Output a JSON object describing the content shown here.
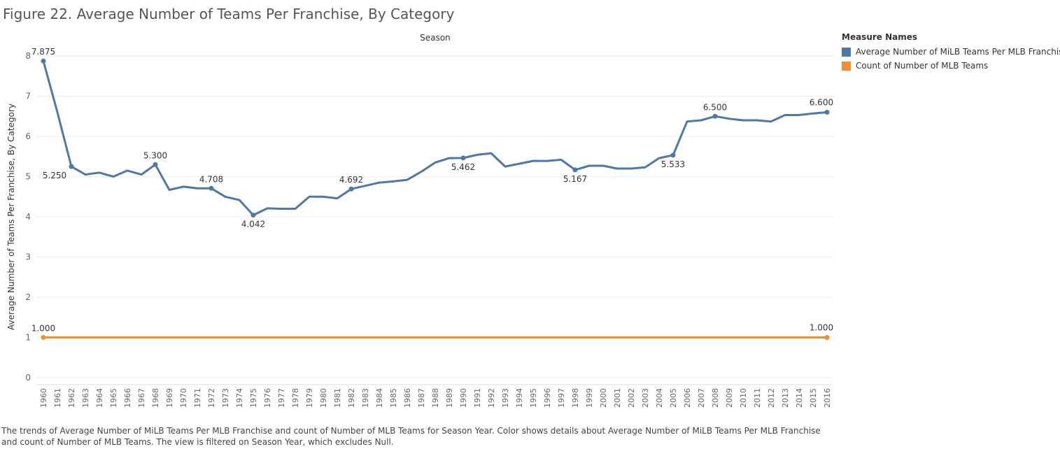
{
  "title": "Figure 22. Average Number of Teams Per Franchise, By Category",
  "caption": "The trends of Average Number of MiLB Teams Per MLB Franchise and count of Number of MLB Teams for Season Year.  Color shows details about Average Number of MiLB Teams Per MLB Franchise and count of Number of MLB Teams. The view is filtered on Season Year, which excludes Null.",
  "legend": {
    "title": "Measure Names",
    "items": [
      {
        "label": "Average Number of MiLB Teams Per MLB Franchise",
        "color": "#4e79a7"
      },
      {
        "label": "Count of Number of MLB Teams",
        "color": "#f28e2b"
      }
    ]
  },
  "chart_data": {
    "type": "line",
    "title": "Figure 22. Average Number of Teams Per Franchise, By Category",
    "xlabel": "Season",
    "ylabel": "Average Number of Teams Per Franchise, By Category",
    "ylim": [
      0,
      8
    ],
    "yticks": [
      "0",
      "1",
      "2",
      "3",
      "4",
      "5",
      "6",
      "7",
      "8"
    ],
    "grid": true,
    "legend_position": "right",
    "x": [
      "1960",
      "1961",
      "1962",
      "1963",
      "1964",
      "1965",
      "1966",
      "1967",
      "1968",
      "1969",
      "1970",
      "1971",
      "1972",
      "1973",
      "1974",
      "1975",
      "1976",
      "1977",
      "1978",
      "1979",
      "1980",
      "1981",
      "1982",
      "1983",
      "1984",
      "1985",
      "1986",
      "1987",
      "1988",
      "1989",
      "1990",
      "1991",
      "1992",
      "1993",
      "1994",
      "1995",
      "1996",
      "1997",
      "1998",
      "1999",
      "2000",
      "2001",
      "2002",
      "2003",
      "2004",
      "2005",
      "2006",
      "2007",
      "2008",
      "2009",
      "2010",
      "2011",
      "2012",
      "2013",
      "2014",
      "2015",
      "2016"
    ],
    "series": [
      {
        "name": "Average Number of MiLB Teams Per MLB Franchise",
        "color": "#4e79a7",
        "values": [
          7.875,
          6.6,
          5.25,
          5.05,
          5.1,
          5.0,
          5.15,
          5.05,
          5.3,
          4.67,
          4.75,
          4.71,
          4.708,
          4.5,
          4.42,
          4.042,
          4.21,
          4.2,
          4.2,
          4.5,
          4.5,
          4.46,
          4.692,
          4.77,
          4.85,
          4.88,
          4.92,
          5.12,
          5.35,
          5.46,
          5.462,
          5.54,
          5.58,
          5.25,
          5.32,
          5.39,
          5.39,
          5.42,
          5.167,
          5.27,
          5.27,
          5.2,
          5.2,
          5.23,
          5.46,
          5.533,
          6.37,
          6.4,
          6.5,
          6.44,
          6.4,
          6.4,
          6.37,
          6.53,
          6.53,
          6.57,
          6.6
        ],
        "labels": [
          {
            "year": "1960",
            "text": "7.875",
            "pos": "above"
          },
          {
            "year": "1962",
            "text": "5.250",
            "pos": "below-left"
          },
          {
            "year": "1968",
            "text": "5.300",
            "pos": "above"
          },
          {
            "year": "1972",
            "text": "4.708",
            "pos": "above"
          },
          {
            "year": "1975",
            "text": "4.042",
            "pos": "below"
          },
          {
            "year": "1982",
            "text": "4.692",
            "pos": "above"
          },
          {
            "year": "1990",
            "text": "5.462",
            "pos": "below"
          },
          {
            "year": "1998",
            "text": "5.167",
            "pos": "below"
          },
          {
            "year": "2005",
            "text": "5.533",
            "pos": "below"
          },
          {
            "year": "2008",
            "text": "6.500",
            "pos": "above"
          },
          {
            "year": "2016",
            "text": "6.600",
            "pos": "above-left"
          }
        ]
      },
      {
        "name": "Count of Number of MLB Teams",
        "color": "#f28e2b",
        "values": [
          1,
          1,
          1,
          1,
          1,
          1,
          1,
          1,
          1,
          1,
          1,
          1,
          1,
          1,
          1,
          1,
          1,
          1,
          1,
          1,
          1,
          1,
          1,
          1,
          1,
          1,
          1,
          1,
          1,
          1,
          1,
          1,
          1,
          1,
          1,
          1,
          1,
          1,
          1,
          1,
          1,
          1,
          1,
          1,
          1,
          1,
          1,
          1,
          1,
          1,
          1,
          1,
          1,
          1,
          1,
          1,
          1
        ],
        "labels": [
          {
            "year": "1960",
            "text": "1.000",
            "pos": "above"
          },
          {
            "year": "2016",
            "text": "1.000",
            "pos": "above-left"
          }
        ]
      }
    ]
  }
}
